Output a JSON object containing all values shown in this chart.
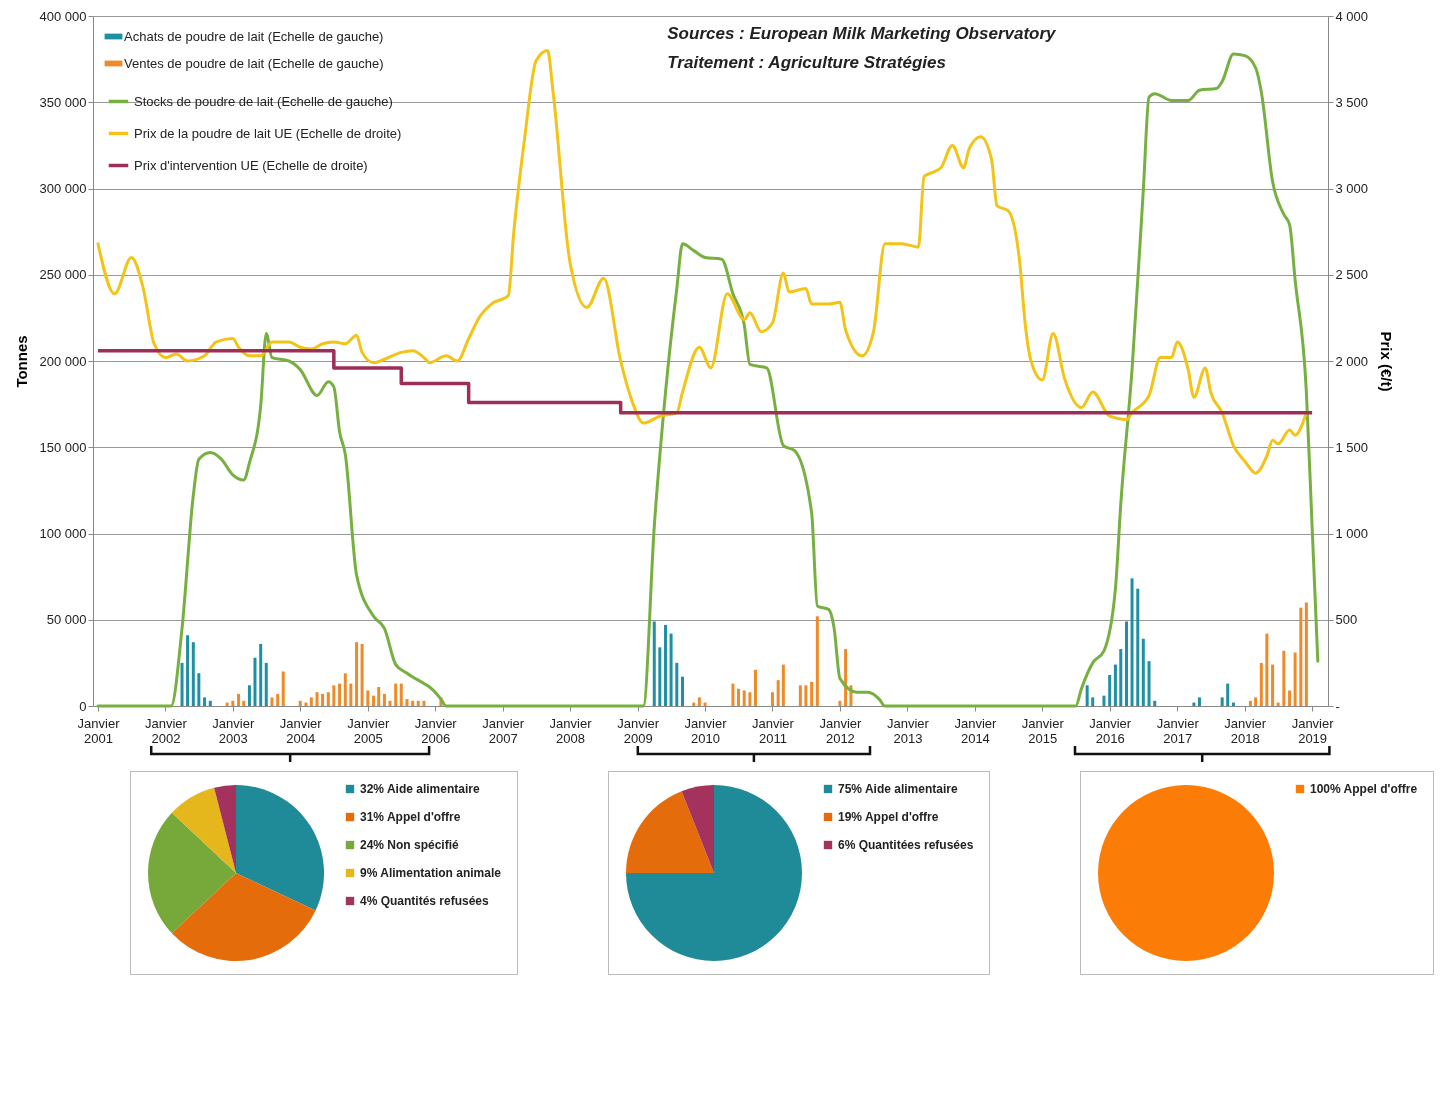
{
  "chart_data": [
    {
      "type": "bar",
      "ylabel": "Tonnes",
      "y2label": "Prix (€/t)",
      "annotations": [
        "Sources : European Milk Marketing Observatory",
        "Traitement : Agriculture Stratégies"
      ],
      "xlim": [
        "2001-01",
        "2019-03"
      ],
      "xticks": [
        {
          "value": "2001-01",
          "label": "Janvier 2001"
        },
        {
          "value": "2002-01",
          "label": "Janvier 2002"
        },
        {
          "value": "2003-01",
          "label": "Janvier 2003"
        },
        {
          "value": "2004-01",
          "label": "Janvier 2004"
        },
        {
          "value": "2005-01",
          "label": "Janvier 2005"
        },
        {
          "value": "2006-01",
          "label": "Janvier 2006"
        },
        {
          "value": "2007-01",
          "label": "Janvier 2007"
        },
        {
          "value": "2008-01",
          "label": "Janvier 2008"
        },
        {
          "value": "2009-01",
          "label": "Janvier 2009"
        },
        {
          "value": "2010-01",
          "label": "Janvier 2010"
        },
        {
          "value": "2011-01",
          "label": "Janvier 2011"
        },
        {
          "value": "2012-01",
          "label": "Janvier 2012"
        },
        {
          "value": "2013-01",
          "label": "Janvier 2013"
        },
        {
          "value": "2014-01",
          "label": "Janvier 2014"
        },
        {
          "value": "2015-01",
          "label": "Janvier 2015"
        },
        {
          "value": "2016-01",
          "label": "Janvier 2016"
        },
        {
          "value": "2017-01",
          "label": "Janvier 2017"
        },
        {
          "value": "2018-01",
          "label": "Janvier 2018"
        },
        {
          "value": "2019-01",
          "label": "Janvier 2019"
        }
      ],
      "ylim": [
        0,
        400000
      ],
      "yticks": [
        0,
        {
          "value": 50000,
          "label": "50 000"
        },
        {
          "value": 100000,
          "label": "100 000"
        },
        {
          "value": 150000,
          "label": "150 000"
        },
        {
          "value": 200000,
          "label": "200 000"
        },
        {
          "value": 250000,
          "label": "250 000"
        },
        {
          "value": 300000,
          "label": "300 000"
        },
        {
          "value": 350000,
          "label": "350 000"
        },
        {
          "value": 400000,
          "label": "400 000"
        }
      ],
      "y2lim": [
        0,
        4000
      ],
      "y2ticks": [
        {
          "value": 0,
          "label": "-"
        },
        500,
        {
          "value": 1000,
          "label": "1 000"
        },
        {
          "value": 1500,
          "label": "1 500"
        },
        {
          "value": 2000,
          "label": "2 000"
        },
        {
          "value": 2500,
          "label": "2 500"
        },
        {
          "value": 3000,
          "label": "3 000"
        },
        {
          "value": 3500,
          "label": "3 500"
        },
        {
          "value": 4000,
          "label": "4 000"
        }
      ],
      "grid": "y",
      "legend": "top left",
      "series": [
        {
          "name": "Achats de poudre de lait (Echelle de gauche)",
          "color": "#1f8fa3",
          "x": [
            "2002-04",
            "2002-05",
            "2002-06",
            "2002-07",
            "2002-08",
            "2002-09",
            "2003-04",
            "2003-05",
            "2003-06",
            "2003-07",
            "2009-04",
            "2009-05",
            "2009-06",
            "2009-07",
            "2009-08",
            "2009-09",
            "2015-09",
            "2015-10",
            "2015-12",
            "2016-01",
            "2016-02",
            "2016-03",
            "2016-04",
            "2016-05",
            "2016-06",
            "2016-07",
            "2016-08",
            "2016-09",
            "2017-04",
            "2017-05",
            "2017-09",
            "2017-10",
            "2017-11"
          ],
          "values": [
            25000,
            41000,
            37000,
            19000,
            5000,
            3000,
            12000,
            28000,
            36000,
            25000,
            49000,
            34000,
            47000,
            42000,
            25000,
            17000,
            12000,
            5000,
            6000,
            18000,
            24000,
            33000,
            49000,
            74000,
            68000,
            39000,
            26000,
            3000,
            2000,
            5000,
            5000,
            13000,
            2000
          ]
        },
        {
          "name": "Ventes de poudre de lait (Echelle de gauche)",
          "color": "#ee8a2a",
          "x": [
            "2002-12",
            "2003-01",
            "2003-02",
            "2003-03",
            "2003-08",
            "2003-09",
            "2003-10",
            "2004-01",
            "2004-02",
            "2004-03",
            "2004-04",
            "2004-05",
            "2004-06",
            "2004-07",
            "2004-08",
            "2004-09",
            "2004-10",
            "2004-11",
            "2004-12",
            "2005-01",
            "2005-02",
            "2005-03",
            "2005-04",
            "2005-05",
            "2005-06",
            "2005-07",
            "2005-08",
            "2005-09",
            "2005-10",
            "2005-11",
            "2006-02",
            "2009-11",
            "2009-12",
            "2010-01",
            "2010-06",
            "2010-07",
            "2010-08",
            "2010-09",
            "2010-10",
            "2011-01",
            "2011-02",
            "2011-03",
            "2011-06",
            "2011-07",
            "2011-08",
            "2011-09",
            "2012-01",
            "2012-02",
            "2012-03",
            "2018-02",
            "2018-03",
            "2018-04",
            "2018-05",
            "2018-06",
            "2018-07",
            "2018-08",
            "2018-09",
            "2018-10",
            "2018-11",
            "2018-12"
          ],
          "values": [
            2000,
            3000,
            7000,
            3000,
            5000,
            7000,
            20000,
            3000,
            2000,
            5000,
            8000,
            7000,
            8000,
            12000,
            13000,
            19000,
            13000,
            37000,
            36000,
            9000,
            6000,
            11000,
            7000,
            3000,
            13000,
            13000,
            4000,
            3000,
            3000,
            3000,
            5000,
            2000,
            5000,
            2000,
            13000,
            10000,
            9000,
            8000,
            21000,
            8000,
            15000,
            24000,
            12000,
            12000,
            14000,
            52000,
            3000,
            33000,
            12000,
            3000,
            5000,
            25000,
            42000,
            24000,
            2000,
            32000,
            9000,
            31000,
            57000,
            60000
          ]
        },
        {
          "name": "Stocks de poudre de lait (Echelle de gauche)",
          "type": "line",
          "color": "#77b041",
          "x": [
            "2001-01",
            "2002-02",
            "2002-04",
            "2002-06",
            "2002-07",
            "2002-09",
            "2002-11",
            "2003-01",
            "2003-03",
            "2003-04",
            "2003-06",
            "2003-07",
            "2003-08",
            "2003-11",
            "2004-01",
            "2004-04",
            "2004-06",
            "2004-07",
            "2004-08",
            "2004-09",
            "2004-11",
            "2005-02",
            "2005-04",
            "2005-06",
            "2005-08",
            "2005-11",
            "2005-12",
            "2006-02",
            "2006-03",
            "2009-02",
            "2009-04",
            "2009-06",
            "2009-08",
            "2009-09",
            "2009-11",
            "2010-01",
            "2010-04",
            "2010-06",
            "2010-08",
            "2010-09",
            "2010-12",
            "2011-03",
            "2011-05",
            "2011-08",
            "2011-09",
            "2011-11",
            "2011-12",
            "2012-01",
            "2012-04",
            "2012-06",
            "2012-08",
            "2012-09",
            "2015-07",
            "2015-08",
            "2015-10",
            "2015-12",
            "2016-02",
            "2016-03",
            "2016-05",
            "2016-07",
            "2016-08",
            "2016-09",
            "2016-12",
            "2017-03",
            "2017-05",
            "2017-08",
            "2017-09",
            "2017-11",
            "2018-01",
            "2018-03",
            "2018-04",
            "2018-06",
            "2018-08",
            "2018-09",
            "2018-10",
            "2018-12",
            "2019-01",
            "2019-02"
          ],
          "values": [
            0,
            0,
            45000,
            122000,
            143000,
            147000,
            143000,
            134000,
            131000,
            141000,
            174000,
            216000,
            202000,
            200000,
            195000,
            180000,
            188000,
            185000,
            159000,
            146000,
            76000,
            52000,
            45000,
            24000,
            19000,
            13000,
            11000,
            4000,
            0,
            0,
            104000,
            182000,
            242000,
            268000,
            264000,
            260000,
            259000,
            239000,
            221000,
            198000,
            196000,
            151000,
            148000,
            112000,
            58000,
            56000,
            45000,
            16000,
            8000,
            8000,
            4000,
            0,
            0,
            10000,
            25000,
            32000,
            68000,
            117000,
            195000,
            299000,
            353000,
            355000,
            351000,
            351000,
            357000,
            358000,
            362000,
            378000,
            377000,
            370000,
            356000,
            304000,
            285000,
            279000,
            247000,
            182000,
            104000,
            26000
          ]
        },
        {
          "name": "Prix de la poudre de lait UE (Echelle de droite)",
          "type": "line",
          "axis": "y2",
          "color": "#f3c417",
          "x": [
            "2001-01",
            "2001-04",
            "2001-07",
            "2001-09",
            "2001-11",
            "2002-01",
            "2002-03",
            "2002-05",
            "2002-08",
            "2002-10",
            "2003-01",
            "2003-02",
            "2003-04",
            "2003-06",
            "2003-08",
            "2003-11",
            "2004-01",
            "2004-03",
            "2004-05",
            "2004-07",
            "2004-09",
            "2004-11",
            "2004-12",
            "2005-02",
            "2005-04",
            "2005-07",
            "2005-09",
            "2005-11",
            "2005-12",
            "2006-03",
            "2006-05",
            "2006-07",
            "2006-09",
            "2006-11",
            "2007-02",
            "2007-03",
            "2007-05",
            "2007-07",
            "2007-09",
            "2007-10",
            "2008-01",
            "2008-04",
            "2008-07",
            "2008-10",
            "2008-12",
            "2009-02",
            "2009-05",
            "2009-08",
            "2009-09",
            "2009-12",
            "2010-02",
            "2010-05",
            "2010-08",
            "2010-09",
            "2010-11",
            "2011-01",
            "2011-03",
            "2011-04",
            "2011-07",
            "2011-08",
            "2011-11",
            "2012-01",
            "2012-02",
            "2012-05",
            "2012-07",
            "2012-09",
            "2012-12",
            "2013-03",
            "2013-04",
            "2013-06",
            "2013-07",
            "2013-09",
            "2013-11",
            "2013-12",
            "2014-02",
            "2014-04",
            "2014-05",
            "2014-07",
            "2014-09",
            "2014-10",
            "2014-11",
            "2015-01",
            "2015-03",
            "2015-05",
            "2015-08",
            "2015-10",
            "2016-01",
            "2016-04",
            "2016-05",
            "2016-08",
            "2016-10",
            "2016-12",
            "2017-01",
            "2017-03",
            "2017-04",
            "2017-06",
            "2017-07",
            "2017-09",
            "2017-11",
            "2018-01",
            "2018-03",
            "2018-05",
            "2018-06",
            "2018-07",
            "2018-09",
            "2018-10",
            "2018-12"
          ],
          "values": [
            2680,
            2390,
            2600,
            2430,
            2100,
            2020,
            2040,
            2000,
            2030,
            2110,
            2130,
            2080,
            2030,
            2030,
            2110,
            2110,
            2080,
            2070,
            2100,
            2110,
            2100,
            2150,
            2050,
            1990,
            2010,
            2050,
            2060,
            2020,
            1990,
            2030,
            2000,
            2130,
            2260,
            2330,
            2380,
            2730,
            3300,
            3740,
            3800,
            3560,
            2570,
            2310,
            2480,
            2000,
            1770,
            1640,
            1680,
            1700,
            1820,
            2080,
            1960,
            2390,
            2240,
            2280,
            2170,
            2220,
            2510,
            2400,
            2420,
            2330,
            2330,
            2340,
            2180,
            2030,
            2170,
            2680,
            2680,
            2660,
            3070,
            3100,
            3120,
            3250,
            3120,
            3230,
            3300,
            3170,
            2900,
            2870,
            2570,
            2210,
            2000,
            1890,
            2160,
            1900,
            1730,
            1820,
            1680,
            1660,
            1700,
            1800,
            2020,
            2020,
            2110,
            1950,
            1790,
            1960,
            1820,
            1700,
            1510,
            1420,
            1350,
            1450,
            1540,
            1520,
            1600,
            1570,
            1700
          ]
        },
        {
          "name": "Prix d'intervention UE (Echelle de droite)",
          "type": "step",
          "axis": "y2",
          "color": "#9c2f59",
          "x": [
            "2001-01",
            "2004-07",
            "2005-07",
            "2006-07",
            "2008-10",
            "2019-01"
          ],
          "values": [
            2060,
            1960,
            1870,
            1760,
            1700,
            1700
          ]
        }
      ]
    },
    {
      "type": "pie",
      "categories": [
        "32% Aide alimentaire",
        "31% Appel d'offre",
        "24% Non spécifié",
        "9% Alimentation animale",
        "4% Quantités refusées"
      ],
      "values": [
        32,
        31,
        24,
        9,
        4
      ],
      "colors": [
        "#1f8a98",
        "#e46c0a",
        "#77a83a",
        "#e5b71c",
        "#a3325c"
      ],
      "legend": "right"
    },
    {
      "type": "pie",
      "categories": [
        "75% Aide alimentaire",
        "19% Appel d'offre",
        "6% Quantitées refusées"
      ],
      "values": [
        75,
        19,
        6
      ],
      "colors": [
        "#1f8a98",
        "#e46c0a",
        "#a3325c"
      ],
      "legend": "right"
    },
    {
      "type": "pie",
      "categories": [
        "100% Appel d'offre"
      ],
      "values": [
        100
      ],
      "colors": [
        "#fb7d07"
      ],
      "legend": "right"
    }
  ]
}
